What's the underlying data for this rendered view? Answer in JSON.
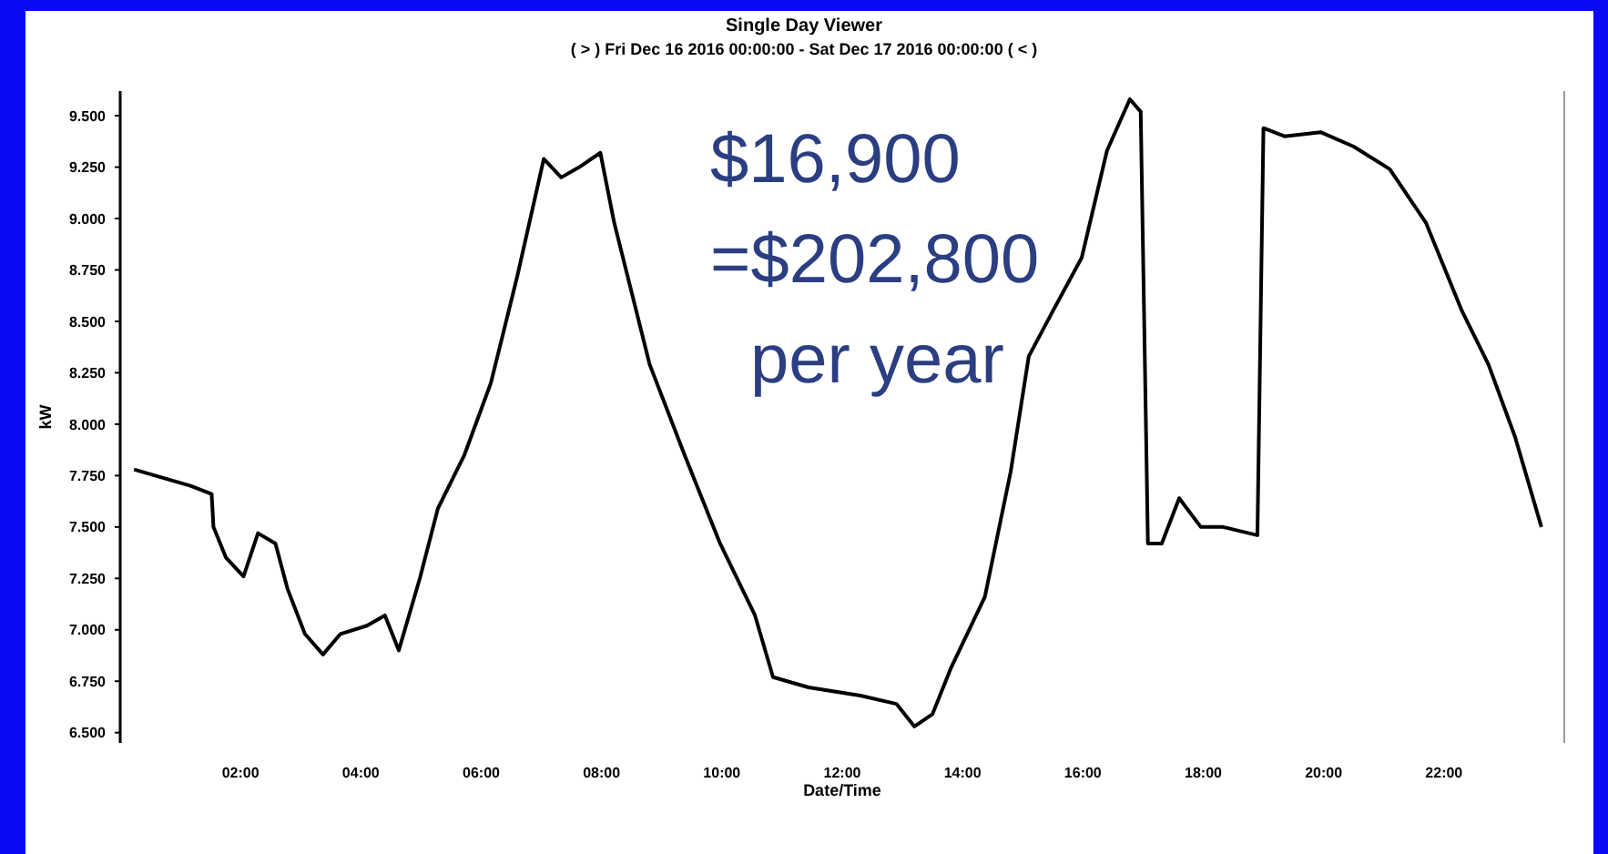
{
  "chart_data": {
    "type": "line",
    "title": "Single Day Viewer",
    "subtitle": "( > ) Fri Dec 16 2016 00:00:00 - Sat Dec 17 2016 00:00:00 ( < )",
    "xlabel": "Date/Time",
    "ylabel": "kW",
    "x": [
      0.23,
      0.58,
      1.17,
      1.52,
      1.55,
      1.76,
      2.05,
      2.29,
      2.58,
      2.78,
      3.07,
      3.37,
      3.66,
      4.1,
      4.4,
      4.63,
      4.98,
      5.28,
      5.72,
      6.16,
      6.6,
      7.04,
      7.33,
      7.63,
      7.98,
      8.21,
      8.8,
      9.38,
      9.97,
      10.55,
      10.85,
      11.44,
      12.3,
      12.9,
      13.2,
      13.5,
      13.8,
      14.37,
      14.8,
      15.1,
      15.5,
      15.98,
      16.4,
      16.78,
      16.96,
      17.08,
      17.31,
      17.6,
      17.96,
      18.33,
      18.9,
      19.0,
      19.35,
      19.95,
      20.5,
      21.1,
      21.7,
      22.3,
      22.74,
      23.18,
      23.62
    ],
    "series": [
      {
        "color": "#000000",
        "values": [
          7.78,
          7.75,
          7.7,
          7.66,
          7.5,
          7.35,
          7.26,
          7.47,
          7.42,
          7.2,
          6.98,
          6.88,
          6.98,
          7.02,
          7.07,
          6.9,
          7.25,
          7.59,
          7.85,
          8.2,
          8.72,
          9.29,
          9.2,
          9.25,
          9.32,
          8.98,
          8.29,
          7.85,
          7.42,
          7.07,
          6.77,
          6.72,
          6.68,
          6.64,
          6.53,
          6.59,
          6.81,
          7.16,
          7.77,
          8.33,
          8.55,
          8.81,
          9.33,
          9.58,
          9.52,
          7.42,
          7.42,
          7.64,
          7.5,
          7.5,
          7.46,
          9.44,
          9.4,
          9.42,
          9.35,
          9.24,
          8.98,
          8.55,
          8.29,
          7.94,
          7.5
        ]
      }
    ],
    "xlim": [
      0,
      24
    ],
    "ylim": [
      6.45,
      9.62
    ],
    "xticks": [
      {
        "value": 2,
        "label": "02:00"
      },
      {
        "value": 4,
        "label": "04:00"
      },
      {
        "value": 6,
        "label": "06:00"
      },
      {
        "value": 8,
        "label": "08:00"
      },
      {
        "value": 10,
        "label": "10:00"
      },
      {
        "value": 12,
        "label": "12:00"
      },
      {
        "value": 14,
        "label": "14:00"
      },
      {
        "value": 16,
        "label": "16:00"
      },
      {
        "value": 18,
        "label": "18:00"
      },
      {
        "value": 20,
        "label": "20:00"
      },
      {
        "value": 22,
        "label": "22:00"
      }
    ],
    "yticks": [
      {
        "value": 6.5,
        "label": "6.500"
      },
      {
        "value": 6.75,
        "label": "6.750"
      },
      {
        "value": 7,
        "label": "7.000"
      },
      {
        "value": 7.25,
        "label": "7.250"
      },
      {
        "value": 7.5,
        "label": "7.500"
      },
      {
        "value": 7.75,
        "label": "7.750"
      },
      {
        "value": 8,
        "label": "8.000"
      },
      {
        "value": 8.25,
        "label": "8.250"
      },
      {
        "value": 8.5,
        "label": "8.500"
      },
      {
        "value": 8.75,
        "label": "8.750"
      },
      {
        "value": 9,
        "label": "9.000"
      },
      {
        "value": 9.25,
        "label": "9.250"
      },
      {
        "value": 9.5,
        "label": "9.500"
      }
    ],
    "annotations": [
      "$16,900",
      "=$202,800",
      "per year"
    ],
    "grid": false,
    "marker": "none",
    "line_style": "solid"
  }
}
